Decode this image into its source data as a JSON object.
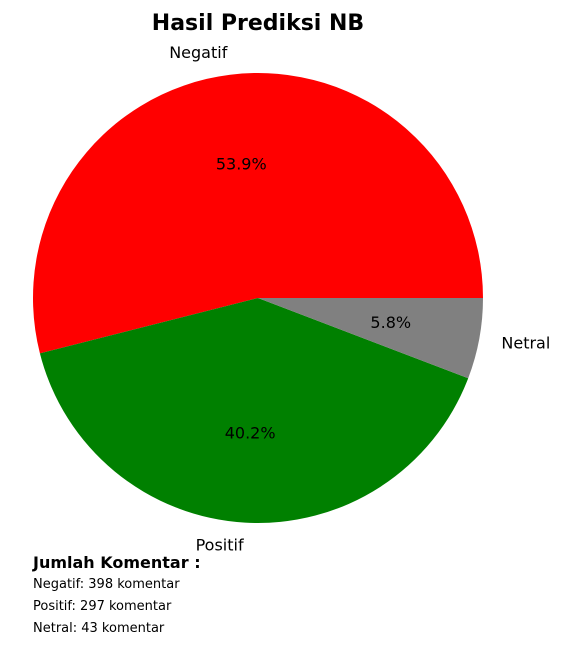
{
  "chart_data": {
    "type": "pie",
    "title": "Hasil Prediksi NB",
    "start_angle_deg": 0,
    "direction": "counterclockwise",
    "slices": [
      {
        "label": "Negatif",
        "value": 53.9,
        "display": "53.9%",
        "color": "#ff0000"
      },
      {
        "label": "Positif",
        "value": 40.2,
        "display": "40.2%",
        "color": "#008000"
      },
      {
        "label": "Netral",
        "value": 5.8,
        "display": "5.8%",
        "color": "#808080"
      }
    ]
  },
  "summary": {
    "heading": "Jumlah Komentar :",
    "lines": [
      "Negatif: 398 komentar",
      "Positif: 297 komentar",
      "Netral: 43 komentar"
    ]
  }
}
